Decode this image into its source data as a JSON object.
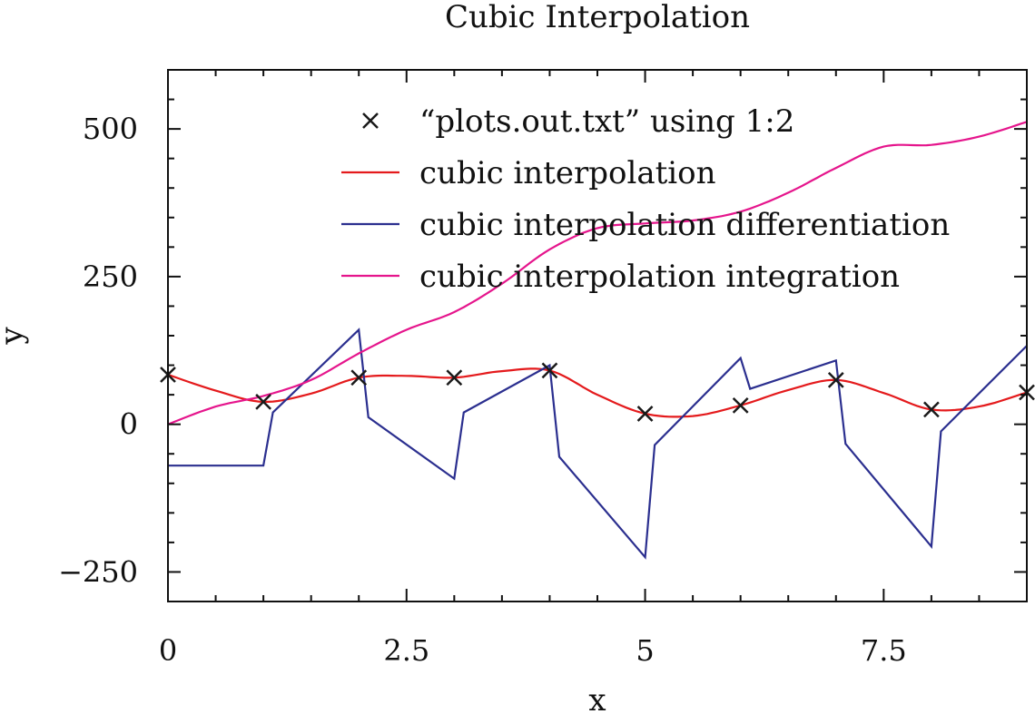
{
  "chart_data": {
    "type": "line",
    "title": "Cubic Interpolation",
    "xlabel": "x",
    "ylabel": "y",
    "xlim": [
      0,
      9
    ],
    "ylim": [
      -300,
      600
    ],
    "xticks": [
      0,
      2.5,
      5,
      7.5
    ],
    "xtick_labels": [
      "0",
      "2.5",
      "5",
      "7.5"
    ],
    "xminor_step": 0.5,
    "yticks": [
      -250,
      0,
      250,
      500
    ],
    "ytick_labels": [
      "−250",
      "0",
      "250",
      "500"
    ],
    "grid": false,
    "legend": "top-center",
    "series": [
      {
        "name": "“plots.out.txt” using 1:2",
        "style": "points",
        "marker": "x",
        "color": "#1a1a1a",
        "x": [
          0,
          1,
          2,
          3,
          4,
          5,
          6,
          7,
          8,
          9
        ],
        "y": [
          84,
          38,
          79,
          79,
          91,
          18,
          32,
          75,
          25,
          54
        ]
      },
      {
        "name": "cubic interpolation",
        "style": "line",
        "color": "#e41a1c",
        "x": [
          0,
          0.5,
          1,
          1.5,
          2,
          2.5,
          3,
          3.5,
          4,
          4.5,
          5,
          5.5,
          6,
          6.5,
          7,
          7.5,
          8,
          8.5,
          9
        ],
        "y": [
          84,
          57,
          38,
          52,
          79,
          82,
          79,
          90,
          91,
          50,
          18,
          14,
          32,
          58,
          75,
          53,
          25,
          30,
          54
        ]
      },
      {
        "name": "cubic interpolation differentiation",
        "style": "line",
        "color": "#2b2f8f",
        "x": [
          0,
          1,
          1.1,
          2,
          2.1,
          3,
          3.1,
          4,
          4.1,
          5,
          5.1,
          6,
          6.1,
          7,
          7.1,
          8,
          8.1,
          9
        ],
        "y": [
          -70,
          -70,
          20,
          160,
          12,
          -92,
          20,
          100,
          -55,
          -225,
          -35,
          112,
          60,
          108,
          -33,
          -207,
          -12,
          133
        ]
      },
      {
        "name": "cubic interpolation integration",
        "style": "line",
        "color": "#e5158c",
        "x": [
          0,
          0.5,
          1,
          1.5,
          2,
          2.5,
          3,
          3.5,
          4,
          4.5,
          5,
          5.5,
          6,
          6.5,
          7,
          7.5,
          8,
          8.5,
          9
        ],
        "y": [
          0,
          30,
          48,
          75,
          120,
          160,
          190,
          238,
          296,
          332,
          340,
          345,
          360,
          392,
          434,
          470,
          473,
          487,
          512
        ]
      }
    ]
  }
}
